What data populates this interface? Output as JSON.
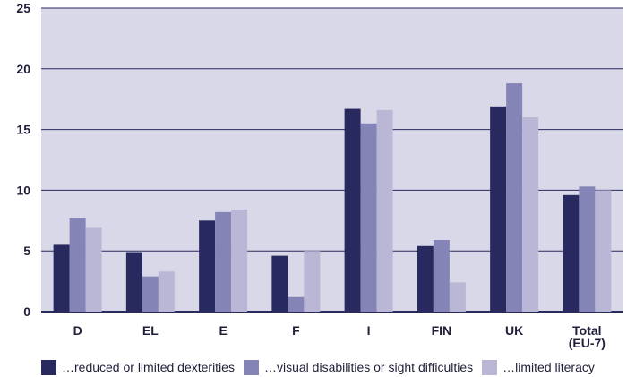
{
  "chart_data": {
    "type": "bar",
    "categories": [
      "D",
      "EL",
      "E",
      "F",
      "I",
      "FIN",
      "UK",
      "Total (EU-7)"
    ],
    "category_lines": [
      [
        "D"
      ],
      [
        "EL"
      ],
      [
        "E"
      ],
      [
        "F"
      ],
      [
        "I"
      ],
      [
        "FIN"
      ],
      [
        "UK"
      ],
      [
        "Total",
        "(EU-7)"
      ]
    ],
    "series": [
      {
        "name": "…reduced or limited dexterities",
        "color": "#282a5f",
        "values": [
          5.5,
          4.9,
          7.5,
          4.6,
          16.7,
          5.4,
          16.9,
          9.6
        ]
      },
      {
        "name": "…visual disabilities or sight difficulties",
        "color": "#8584b6",
        "values": [
          7.7,
          2.9,
          8.2,
          1.2,
          15.5,
          5.9,
          18.8,
          10.3
        ]
      },
      {
        "name": "…limited literacy",
        "color": "#b9b7d5",
        "values": [
          6.9,
          3.3,
          8.4,
          5.0,
          16.6,
          2.4,
          16.0,
          10.0
        ]
      }
    ],
    "ylim": [
      0,
      25
    ],
    "yticks": [
      0,
      5,
      10,
      15,
      20,
      25
    ],
    "grid": true,
    "legend_position": "bottom",
    "background": "#d9d8e8",
    "grid_color": "#282a5f"
  }
}
